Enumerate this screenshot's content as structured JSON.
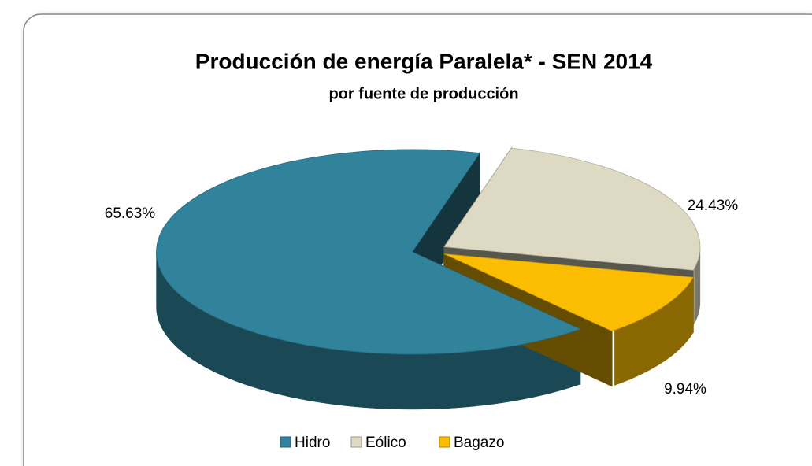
{
  "chart_data": {
    "type": "pie",
    "title": "Producción de energía Paralela* - SEN 2014",
    "subtitle": "por fuente de producción",
    "categories": [
      "Hidro",
      "Eólico",
      "Bagazo"
    ],
    "values": [
      65.63,
      24.43,
      9.94
    ],
    "value_labels": [
      "65.63%",
      "24.43%",
      "9.94%"
    ],
    "colors": [
      "#31839b",
      "#ddd9c3",
      "#fbbd02"
    ],
    "legend": "bottom"
  }
}
